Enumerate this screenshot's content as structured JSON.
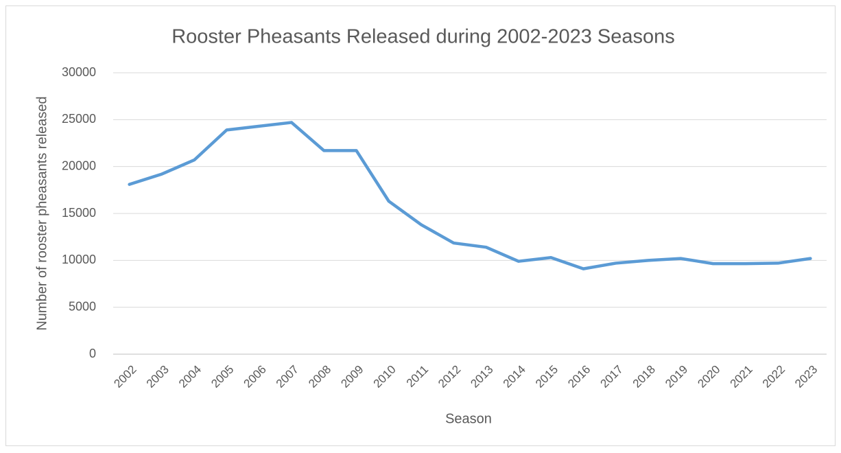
{
  "chart_data": {
    "type": "line",
    "title": "Rooster Pheasants Released during 2002-2023 Seasons",
    "x_label": "Season",
    "y_label": "Number of rooster pheasants released",
    "categories": [
      "2002",
      "2003",
      "2004",
      "2005",
      "2006",
      "2007",
      "2008",
      "2009",
      "2010",
      "2011",
      "2012",
      "2013",
      "2014",
      "2015",
      "2016",
      "2017",
      "2018",
      "2019",
      "2020",
      "2021",
      "2022",
      "2023"
    ],
    "series": [
      {
        "name": "Rooster pheasants released",
        "color": "#5b9bd5",
        "values": [
          18100,
          19200,
          20700,
          23900,
          24300,
          24700,
          21700,
          21700,
          16300,
          13800,
          11850,
          11400,
          9900,
          10300,
          9100,
          9700,
          10000,
          10200,
          9650,
          9650,
          9700,
          10200
        ]
      }
    ],
    "ylim": [
      0,
      30000
    ],
    "yticks": [
      0,
      5000,
      10000,
      15000,
      20000,
      25000,
      30000
    ],
    "grid": true
  }
}
